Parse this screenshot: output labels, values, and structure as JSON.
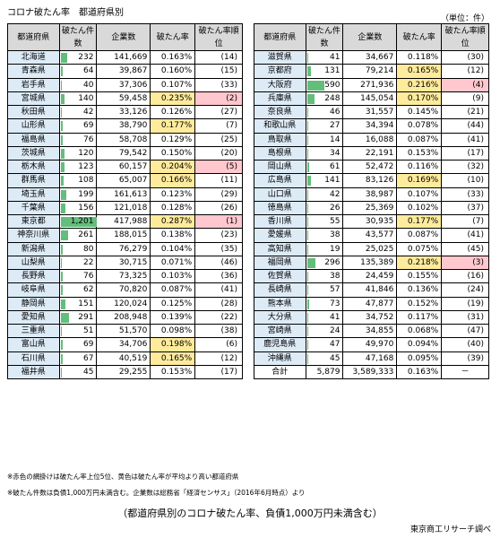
{
  "title": "コロナ破たん率　都道府県別",
  "unit": "（単位：件）",
  "headers": [
    "都道府県",
    "破たん件数",
    "企業数",
    "破たん率",
    "破たん率順位"
  ],
  "colors": {
    "yellow": "#ffeb9c",
    "pink": "#ffc7ce",
    "bar": "#63be7b",
    "pref_bg": "#ddebf7",
    "header_bg": "#d9d9d9"
  },
  "chart_data": {
    "type": "table",
    "columns": [
      "都道府県",
      "破たん件数",
      "企業数",
      "破たん率",
      "破たん率順位"
    ],
    "left_rows": [
      {
        "pref": "北海道",
        "count": "232",
        "firms": "141,669",
        "rate": "0.163%",
        "rank": "(14)",
        "hl": ""
      },
      {
        "pref": "青森県",
        "count": "64",
        "firms": "39,867",
        "rate": "0.160%",
        "rank": "(15)",
        "hl": ""
      },
      {
        "pref": "岩手県",
        "count": "40",
        "firms": "37,306",
        "rate": "0.107%",
        "rank": "(33)",
        "hl": ""
      },
      {
        "pref": "宮城県",
        "count": "140",
        "firms": "59,458",
        "rate": "0.235%",
        "rank": "(2)",
        "hl": "pink"
      },
      {
        "pref": "秋田県",
        "count": "42",
        "firms": "33,126",
        "rate": "0.126%",
        "rank": "(27)",
        "hl": ""
      },
      {
        "pref": "山形県",
        "count": "69",
        "firms": "38,790",
        "rate": "0.177%",
        "rank": "(7)",
        "hl": "yellow"
      },
      {
        "pref": "福島県",
        "count": "76",
        "firms": "58,708",
        "rate": "0.129%",
        "rank": "(25)",
        "hl": ""
      },
      {
        "pref": "茨城県",
        "count": "120",
        "firms": "79,542",
        "rate": "0.150%",
        "rank": "(20)",
        "hl": ""
      },
      {
        "pref": "栃木県",
        "count": "123",
        "firms": "60,157",
        "rate": "0.204%",
        "rank": "(5)",
        "hl": "pink"
      },
      {
        "pref": "群馬県",
        "count": "108",
        "firms": "65,007",
        "rate": "0.166%",
        "rank": "(11)",
        "hl": "yellow"
      },
      {
        "pref": "埼玉県",
        "count": "199",
        "firms": "161,613",
        "rate": "0.123%",
        "rank": "(29)",
        "hl": ""
      },
      {
        "pref": "千葉県",
        "count": "156",
        "firms": "121,018",
        "rate": "0.128%",
        "rank": "(26)",
        "hl": ""
      },
      {
        "pref": "東京都",
        "count": "1,201",
        "firms": "417,988",
        "rate": "0.287%",
        "rank": "(1)",
        "hl": "pink"
      },
      {
        "pref": "神奈川県",
        "count": "261",
        "firms": "188,015",
        "rate": "0.138%",
        "rank": "(23)",
        "hl": ""
      },
      {
        "pref": "新潟県",
        "count": "80",
        "firms": "76,279",
        "rate": "0.104%",
        "rank": "(35)",
        "hl": ""
      },
      {
        "pref": "山梨県",
        "count": "22",
        "firms": "30,715",
        "rate": "0.071%",
        "rank": "(46)",
        "hl": ""
      },
      {
        "pref": "長野県",
        "count": "76",
        "firms": "73,325",
        "rate": "0.103%",
        "rank": "(36)",
        "hl": ""
      },
      {
        "pref": "岐阜県",
        "count": "62",
        "firms": "70,820",
        "rate": "0.087%",
        "rank": "(41)",
        "hl": ""
      },
      {
        "pref": "静岡県",
        "count": "151",
        "firms": "120,024",
        "rate": "0.125%",
        "rank": "(28)",
        "hl": ""
      },
      {
        "pref": "愛知県",
        "count": "291",
        "firms": "208,948",
        "rate": "0.139%",
        "rank": "(22)",
        "hl": ""
      },
      {
        "pref": "三重県",
        "count": "51",
        "firms": "51,570",
        "rate": "0.098%",
        "rank": "(38)",
        "hl": ""
      },
      {
        "pref": "富山県",
        "count": "69",
        "firms": "34,706",
        "rate": "0.198%",
        "rank": "(6)",
        "hl": "yellow"
      },
      {
        "pref": "石川県",
        "count": "67",
        "firms": "40,519",
        "rate": "0.165%",
        "rank": "(12)",
        "hl": "yellow"
      },
      {
        "pref": "福井県",
        "count": "45",
        "firms": "29,255",
        "rate": "0.153%",
        "rank": "(17)",
        "hl": ""
      }
    ],
    "right_rows": [
      {
        "pref": "滋賀県",
        "count": "41",
        "firms": "34,667",
        "rate": "0.118%",
        "rank": "(30)",
        "hl": ""
      },
      {
        "pref": "京都府",
        "count": "131",
        "firms": "79,214",
        "rate": "0.165%",
        "rank": "(12)",
        "hl": "yellow"
      },
      {
        "pref": "大阪府",
        "count": "590",
        "firms": "271,936",
        "rate": "0.216%",
        "rank": "(4)",
        "hl": "pink"
      },
      {
        "pref": "兵庫県",
        "count": "248",
        "firms": "145,054",
        "rate": "0.170%",
        "rank": "(9)",
        "hl": "yellow"
      },
      {
        "pref": "奈良県",
        "count": "46",
        "firms": "31,557",
        "rate": "0.145%",
        "rank": "(21)",
        "hl": ""
      },
      {
        "pref": "和歌山県",
        "count": "27",
        "firms": "34,394",
        "rate": "0.078%",
        "rank": "(44)",
        "hl": ""
      },
      {
        "pref": "鳥取県",
        "count": "14",
        "firms": "16,088",
        "rate": "0.087%",
        "rank": "(41)",
        "hl": ""
      },
      {
        "pref": "島根県",
        "count": "34",
        "firms": "22,191",
        "rate": "0.153%",
        "rank": "(17)",
        "hl": ""
      },
      {
        "pref": "岡山県",
        "count": "61",
        "firms": "52,472",
        "rate": "0.116%",
        "rank": "(32)",
        "hl": ""
      },
      {
        "pref": "広島県",
        "count": "141",
        "firms": "83,126",
        "rate": "0.169%",
        "rank": "(10)",
        "hl": "yellow"
      },
      {
        "pref": "山口県",
        "count": "42",
        "firms": "38,987",
        "rate": "0.107%",
        "rank": "(33)",
        "hl": ""
      },
      {
        "pref": "徳島県",
        "count": "26",
        "firms": "25,369",
        "rate": "0.102%",
        "rank": "(37)",
        "hl": ""
      },
      {
        "pref": "香川県",
        "count": "55",
        "firms": "30,935",
        "rate": "0.177%",
        "rank": "(7)",
        "hl": "yellow"
      },
      {
        "pref": "愛媛県",
        "count": "38",
        "firms": "43,577",
        "rate": "0.087%",
        "rank": "(41)",
        "hl": ""
      },
      {
        "pref": "高知県",
        "count": "19",
        "firms": "25,025",
        "rate": "0.075%",
        "rank": "(45)",
        "hl": ""
      },
      {
        "pref": "福岡県",
        "count": "296",
        "firms": "135,389",
        "rate": "0.218%",
        "rank": "(3)",
        "hl": "pink"
      },
      {
        "pref": "佐賀県",
        "count": "38",
        "firms": "24,459",
        "rate": "0.155%",
        "rank": "(16)",
        "hl": ""
      },
      {
        "pref": "長崎県",
        "count": "57",
        "firms": "41,846",
        "rate": "0.136%",
        "rank": "(24)",
        "hl": ""
      },
      {
        "pref": "熊本県",
        "count": "73",
        "firms": "47,877",
        "rate": "0.152%",
        "rank": "(19)",
        "hl": ""
      },
      {
        "pref": "大分県",
        "count": "41",
        "firms": "34,752",
        "rate": "0.117%",
        "rank": "(31)",
        "hl": ""
      },
      {
        "pref": "宮崎県",
        "count": "24",
        "firms": "34,855",
        "rate": "0.068%",
        "rank": "(47)",
        "hl": ""
      },
      {
        "pref": "鹿児島県",
        "count": "47",
        "firms": "49,970",
        "rate": "0.094%",
        "rank": "(40)",
        "hl": ""
      },
      {
        "pref": "沖縄県",
        "count": "45",
        "firms": "47,168",
        "rate": "0.095%",
        "rank": "(39)",
        "hl": ""
      }
    ],
    "total": {
      "pref": "合計",
      "count": "5,879",
      "firms": "3,589,333",
      "rate": "0.163%",
      "rank": "－"
    }
  },
  "notes": [
    "※赤色の網掛けは破たん率上位5位、黄色は破たん率が平均より高い都道府県",
    "※破たん件数は負債1,000万円未満含む。企業数は総務省「経済センサス」（2016年6月時点）より"
  ],
  "caption": "（都道府県別のコロナ破たん率、負債1,000万円未満含む）",
  "source": "東京商工リサーチ調べ"
}
